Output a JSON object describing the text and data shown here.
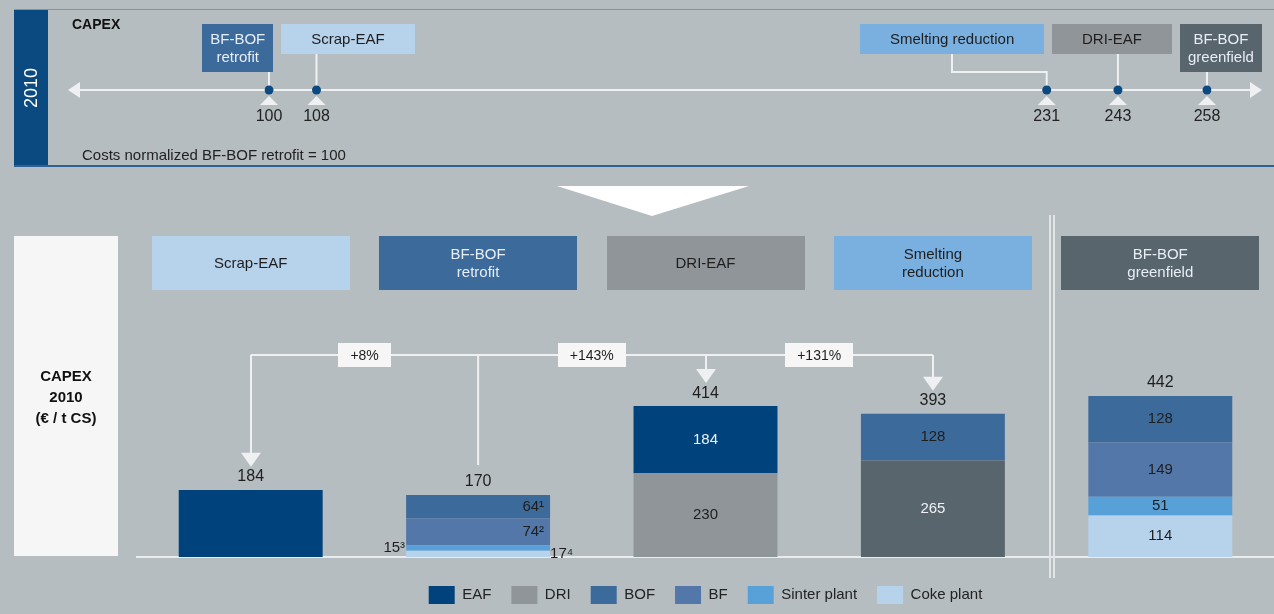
{
  "chart_data": [
    {
      "type": "other",
      "title": "CAPEX",
      "ylabel": "2010",
      "categories": [
        "BF-BOF retrofit",
        "Scrap-EAF",
        "Smelting reduction",
        "DRI-EAF",
        "BF-BOF greenfield"
      ],
      "values": [
        100,
        108,
        231,
        243,
        258
      ],
      "colors": [
        "#3c6a9a",
        "#b7d3ec",
        "#7ab0e0",
        "#909599",
        "#58656d"
      ],
      "color": "#0b4a80",
      "data_labels": true,
      "annotations": [
        "Costs normalized BF-BOF retrofit = 100"
      ]
    },
    {
      "type": "bar",
      "stacked": true,
      "ylabel": "CAPEX\n2010\n(€ / t CS)",
      "categories": [
        "Scrap-EAF",
        "BF-BOF retrofit",
        "DRI-EAF",
        "Smelting reduction",
        "BF-BOF greenfield"
      ],
      "series": [
        {
          "name": "Coke plant",
          "color": "#b7d3ec",
          "values": [
            null,
            17,
            null,
            null,
            114
          ],
          "value_labels": [
            null,
            "17⁴",
            null,
            null,
            "114"
          ]
        },
        {
          "name": "Sinter plant",
          "color": "#58a0d8",
          "values": [
            null,
            15,
            null,
            null,
            51
          ],
          "value_labels": [
            null,
            "15³",
            null,
            null,
            "51"
          ]
        },
        {
          "name": "BF",
          "color": "#5277a8",
          "values": [
            null,
            74,
            null,
            null,
            149
          ],
          "value_labels": [
            null,
            "74²",
            null,
            null,
            "149"
          ]
        },
        {
          "color": "#58656d",
          "values": [
            null,
            null,
            null,
            265,
            null
          ],
          "value_labels": [
            null,
            null,
            null,
            "265",
            null
          ]
        },
        {
          "name": "BOF",
          "color": "#3c6a9a",
          "values": [
            null,
            64,
            null,
            128,
            128
          ],
          "value_labels": [
            null,
            "64¹",
            null,
            "128",
            "128"
          ]
        },
        {
          "name": "DRI",
          "color": "#909599",
          "values": [
            null,
            null,
            230,
            null,
            null
          ],
          "value_labels": [
            null,
            null,
            "230",
            null,
            null
          ]
        },
        {
          "name": "EAF",
          "color": "#00437c",
          "values": [
            184,
            null,
            184,
            null,
            null
          ],
          "value_labels": [
            null,
            null,
            "184",
            null,
            null
          ]
        }
      ],
      "totals": [
        "184",
        "170",
        "414",
        "393",
        "442"
      ],
      "annotations": [
        "+8%",
        "+143%",
        "+131%"
      ],
      "legend": "bottom"
    }
  ]
}
